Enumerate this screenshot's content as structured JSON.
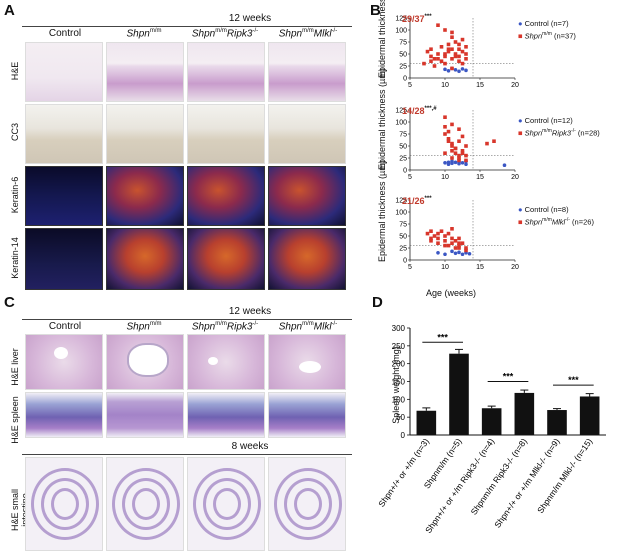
{
  "panelA": {
    "letter": "A",
    "timepoint": "12 weeks",
    "columns": [
      "Control",
      "Shpn",
      "Shpn",
      "Shpn"
    ],
    "column_sup": [
      "",
      "m/m",
      "m/m",
      "m/m"
    ],
    "column_suffix": [
      "",
      "",
      "Ripk3",
      "Mlkl"
    ],
    "column_suffix_sup": [
      "",
      "",
      "-/-",
      "-/-"
    ],
    "rows": [
      "H&E",
      "CC3",
      "Keratin-6",
      "Keratin-14"
    ]
  },
  "panelB": {
    "letter": "B",
    "ylabel": "Epidermal thickness (µm)",
    "xlabel": "Age (weeks)",
    "subplots": [
      {
        "ratio": "29/37",
        "stars": "***",
        "legend": [
          "Control (n=7)",
          "Shpn^m/m (n=37)"
        ]
      },
      {
        "ratio": "14/28",
        "stars": "***,#",
        "legend": [
          "Control (n=12)",
          "Shpn^m/m Ripk3^-/- (n=28)"
        ]
      },
      {
        "ratio": "21/26",
        "stars": "***",
        "legend": [
          "Control (n=8)",
          "Shpn^m/m Mlkl^-/- (n=26)"
        ]
      }
    ],
    "legend_labels": {
      "c1": "Control (n=7)",
      "m1a": "Shpn",
      "m1sup": "m/m",
      "m1b": " (n=37)",
      "c2": "Control (n=12)",
      "m2a": "Shpn",
      "m2sup": "m/m",
      "m2b": "Ripk3",
      "m2sup2": "-/-",
      "m2c": " (n=28)",
      "c3": "Control (n=8)",
      "m3a": "Shpn",
      "m3sup": "m/m",
      "m3b": "Mlkl",
      "m3sup2": "-/-",
      "m3c": " (n=26)"
    },
    "colors": {
      "control": "#3b57c4",
      "mutant": "#d8362b",
      "ratio": "#c0392b"
    }
  },
  "panelC": {
    "letter": "C",
    "timepoint_top": "12 weeks",
    "timepoint_bottom": "8 weeks",
    "rows": [
      "H&E liver",
      "H&E spleen",
      "H&E small intestine"
    ]
  },
  "panelD": {
    "letter": "D",
    "ylabel": "Spleen weight (mg)",
    "stars": "***",
    "categories": [
      "Shpn+/+ or +/m (n=3)",
      "Shpnm/m (n=5)",
      "Shpn+/+ or +/m Ripk3-/- (n=4)",
      "Shpnm/m Ripk3-/- (n=8)",
      "Shpn+/+ or +/m Mlkl-/- (n=9)",
      "Shpnm/m Mlkl-/- (n=15)"
    ]
  },
  "chart_data": [
    {
      "type": "scatter",
      "xlabel": "Age (weeks)",
      "ylabel": "Epidermal thickness (µm)",
      "xlim": [
        5,
        20
      ],
      "ylim": [
        0,
        125
      ],
      "series": [
        {
          "name": "Control (n=7)",
          "x": [
            10,
            10.5,
            11,
            11.5,
            12,
            12.5,
            13
          ],
          "y": [
            18,
            15,
            20,
            17,
            14,
            19,
            16
          ]
        },
        {
          "name": "Shpn m/m (n=37)",
          "x": [
            7.5,
            8,
            8,
            8.5,
            9,
            9,
            9.5,
            10,
            10,
            10,
            10.5,
            10.5,
            11,
            11,
            11,
            11.5,
            11.5,
            12,
            12,
            12,
            12.5,
            12.5,
            13,
            13,
            7,
            8,
            9,
            10,
            11,
            12,
            13,
            8.5,
            9.5,
            10.5,
            11.5,
            12.5,
            11
          ],
          "y": [
            55,
            45,
            60,
            40,
            110,
            50,
            65,
            100,
            45,
            30,
            70,
            55,
            85,
            40,
            60,
            50,
            75,
            60,
            45,
            35,
            55,
            80,
            50,
            65,
            30,
            35,
            40,
            50,
            95,
            70,
            40,
            25,
            35,
            60,
            45,
            30,
            20
          ]
        }
      ]
    },
    {
      "type": "scatter",
      "xlabel": "Age (weeks)",
      "ylabel": "Epidermal thickness (µm)",
      "xlim": [
        5,
        20
      ],
      "ylim": [
        0,
        125
      ],
      "series": [
        {
          "name": "Control (n=12)",
          "x": [
            10,
            10.5,
            11,
            11,
            11.5,
            12,
            12,
            12.5,
            13,
            13,
            18.5,
            10.5
          ],
          "y": [
            15,
            12,
            18,
            14,
            16,
            13,
            17,
            15,
            12,
            18,
            10,
            16
          ]
        },
        {
          "name": "Shpn m/m Ripk3 -/- (n=28)",
          "x": [
            10,
            10,
            10.5,
            10.5,
            11,
            11,
            11,
            11.5,
            11.5,
            12,
            12,
            12,
            12.5,
            12.5,
            13,
            13,
            10,
            11,
            12,
            13,
            10.5,
            11.5,
            12.5,
            17,
            16,
            11,
            12,
            10
          ],
          "y": [
            90,
            75,
            80,
            60,
            55,
            50,
            40,
            45,
            35,
            30,
            25,
            60,
            40,
            70,
            30,
            20,
            110,
            95,
            85,
            50,
            65,
            45,
            35,
            60,
            55,
            25,
            20,
            35
          ]
        }
      ]
    },
    {
      "type": "scatter",
      "xlabel": "Age (weeks)",
      "ylabel": "Epidermal thickness (µm)",
      "xlim": [
        5,
        20
      ],
      "ylim": [
        0,
        125
      ],
      "series": [
        {
          "name": "Control (n=8)",
          "x": [
            9,
            10,
            11,
            11.5,
            12,
            12.5,
            13,
            13.5
          ],
          "y": [
            15,
            12,
            18,
            14,
            16,
            12,
            15,
            13
          ]
        },
        {
          "name": "Shpn m/m Mlkl -/- (n=26)",
          "x": [
            7.5,
            8,
            8,
            8.5,
            9,
            9,
            9.5,
            10,
            10,
            10.5,
            11,
            11,
            11.5,
            12,
            12,
            12,
            12.5,
            13,
            13,
            10,
            11,
            12,
            9,
            8,
            10.5,
            11.5
          ],
          "y": [
            55,
            60,
            40,
            50,
            45,
            35,
            60,
            50,
            30,
            55,
            45,
            35,
            40,
            25,
            30,
            45,
            35,
            20,
            25,
            40,
            65,
            35,
            55,
            45,
            30,
            25
          ]
        }
      ]
    },
    {
      "type": "bar",
      "ylabel": "Spleen weight (mg)",
      "ylim": [
        0,
        300
      ],
      "categories": [
        "Shpn+/+ or +/m (n=3)",
        "Shpnm/m (n=5)",
        "Shpn+/+ or +/m Ripk3-/- (n=4)",
        "Shpnm/m Ripk3-/- (n=8)",
        "Shpn+/+ or +/m Mlkl-/- (n=9)",
        "Shpnm/m Mlkl-/- (n=15)"
      ],
      "values": [
        68,
        228,
        75,
        118,
        70,
        108
      ],
      "errors": [
        8,
        12,
        6,
        8,
        4,
        8
      ],
      "yticks": [
        0,
        50,
        100,
        150,
        200,
        250,
        300
      ]
    }
  ]
}
